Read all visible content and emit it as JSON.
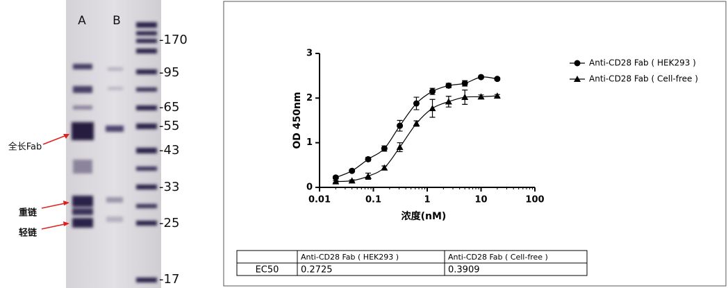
{
  "gel": {
    "lanes": [
      "A",
      "B"
    ],
    "markers": [
      "-170",
      "-95",
      "-65",
      "-55",
      "-43",
      "-33",
      "-25",
      "-17"
    ],
    "annotations": [
      "全长Fab",
      "重链",
      "轻链"
    ]
  },
  "chart_data": {
    "type": "scatter",
    "xscale": "log",
    "ylabel": "OD 450nm",
    "xlabel": "浓度(nM)",
    "x": [
      0.02,
      0.04,
      0.08,
      0.16,
      0.31,
      0.63,
      1.25,
      2.5,
      5,
      10,
      20
    ],
    "series": [
      {
        "name": "Anti-CD28 Fab ( HEK293 )",
        "marker": "circle",
        "color": "#000000",
        "values": [
          0.22,
          0.37,
          0.63,
          0.87,
          1.38,
          1.88,
          2.15,
          2.28,
          2.33,
          2.47,
          2.43
        ],
        "errors": [
          0.03,
          0.03,
          0.04,
          0.06,
          0.12,
          0.14,
          0.07,
          0.05,
          0.06,
          0.03,
          0.03
        ]
      },
      {
        "name": "Anti-CD28 Fab ( Cell-free )",
        "marker": "triangle",
        "color": "#000000",
        "values": [
          0.13,
          0.15,
          0.25,
          0.44,
          0.9,
          1.43,
          1.77,
          1.92,
          2.02,
          2.03,
          2.05
        ],
        "errors": [
          0.02,
          0.02,
          0.07,
          0.04,
          0.1,
          0.06,
          0.2,
          0.12,
          0.16,
          0.04,
          0.03
        ]
      }
    ],
    "xlim": [
      0.01,
      100
    ],
    "xticks": [
      0.01,
      0.1,
      1,
      10,
      100
    ],
    "ylim": [
      0,
      3
    ],
    "yticks": [
      0,
      1,
      2,
      3
    ],
    "legend": "right"
  },
  "table": {
    "columns": [
      "Anti-CD28 Fab ( HEK293 )",
      "Anti-CD28 Fab ( Cell-free )"
    ],
    "rows": [
      [
        "EC50",
        0.2725,
        0.3909
      ]
    ]
  }
}
